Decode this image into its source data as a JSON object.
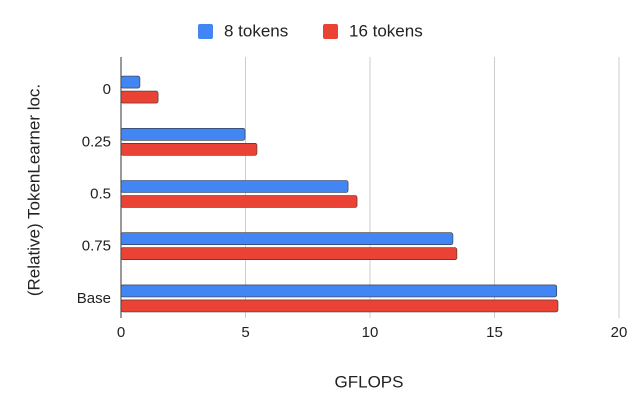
{
  "chart_data": {
    "type": "bar",
    "orientation": "horizontal",
    "x_label": "GFLOPS",
    "y_label": "(Relative) TokenLearner loc.",
    "categories": [
      "0",
      "0.25",
      "0.5",
      "0.75",
      "Base"
    ],
    "series": [
      {
        "name": "8 tokens",
        "color": "#4285f4",
        "values": [
          0.76,
          4.98,
          9.12,
          13.33,
          17.5
        ]
      },
      {
        "name": "16 tokens",
        "color": "#ea4335",
        "values": [
          1.49,
          5.46,
          9.48,
          13.49,
          17.55
        ]
      }
    ],
    "xlim": [
      0,
      20
    ],
    "xticks": [
      0,
      5,
      10,
      15,
      20
    ],
    "grid": true,
    "legend": "top"
  }
}
